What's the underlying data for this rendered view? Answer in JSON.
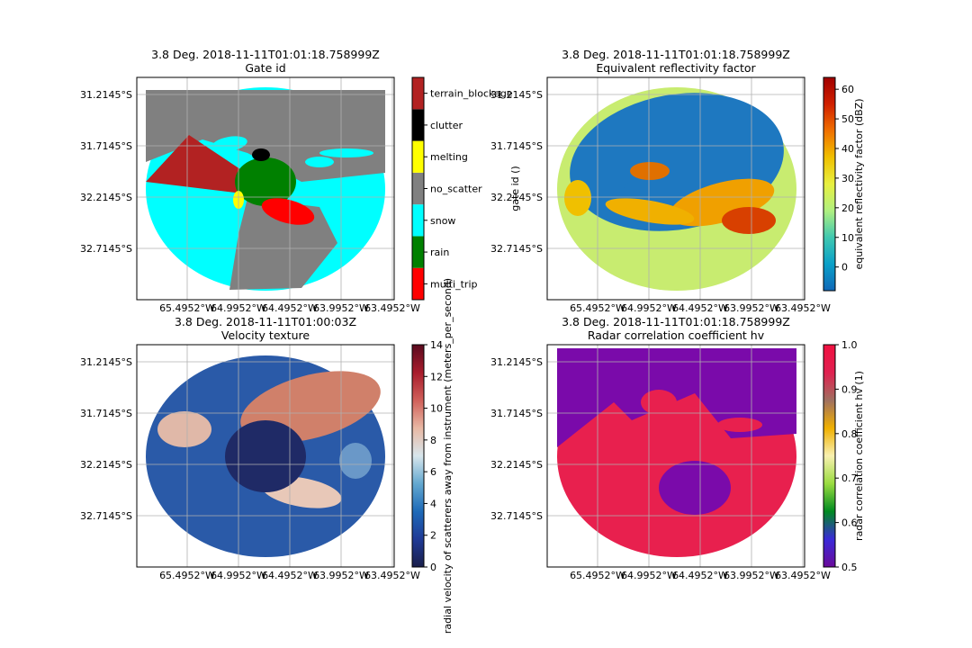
{
  "colors": {
    "gate_id": {
      "multi_trip": "#ff0000",
      "rain": "#008000",
      "snow": "#00ffff",
      "no_scatter": "#808080",
      "melting": "#ffff00",
      "clutter": "#000000",
      "terrain_blockage": "#b22222"
    },
    "plot_edge": "#000000",
    "grid": "#b0b0b0",
    "panel_bg": "#ffffff"
  },
  "chart_data": [
    {
      "type": "heatmap",
      "title": "3.8 Deg. 2018-11-11T01:01:18.758999Z",
      "subtitle": "Gate id",
      "x_tick_labels": [
        "65.4952°W",
        "64.9952°W",
        "64.4952°W",
        "63.9952°W",
        "63.4952°W"
      ],
      "y_tick_labels": [
        "31.2145°S",
        "31.7145°S",
        "32.2145°S",
        "32.7145°S"
      ],
      "colorbar": {
        "kind": "categorical",
        "label": "gate id ()",
        "categories": [
          "multi_trip",
          "rain",
          "snow",
          "no_scatter",
          "melting",
          "clutter",
          "terrain_blockage"
        ]
      },
      "grid": true
    },
    {
      "type": "heatmap",
      "title": "3.8 Deg. 2018-11-11T01:01:18.758999Z",
      "subtitle": "Equivalent reflectivity factor",
      "x_tick_labels": [
        "65.4952°W",
        "64.9952°W",
        "64.4952°W",
        "63.9952°W",
        "63.4952°W"
      ],
      "y_tick_labels": [
        "31.2145°S",
        "31.7145°S",
        "32.2145°S",
        "32.7145°S"
      ],
      "colorbar": {
        "kind": "continuous",
        "label": "equivalent reflectivity factor (dBZ)",
        "range": [
          -8,
          64
        ],
        "ticks": [
          "0",
          "10",
          "20",
          "30",
          "40",
          "50",
          "60"
        ],
        "tick_values": [
          0,
          10,
          20,
          30,
          40,
          50,
          60
        ],
        "stops": [
          "#1068b8",
          "#0aa0c8",
          "#40c8b0",
          "#b0f080",
          "#e8f040",
          "#f0c000",
          "#f07000",
          "#d02000",
          "#a00000"
        ]
      },
      "grid": true
    },
    {
      "type": "heatmap",
      "title": "3.8 Deg. 2018-11-11T01:00:03Z",
      "subtitle": "Velocity texture",
      "x_tick_labels": [
        "65.4952°W",
        "64.9952°W",
        "64.4952°W",
        "63.9952°W",
        "63.4952°W"
      ],
      "y_tick_labels": [
        "31.2145°S",
        "31.7145°S",
        "32.2145°S",
        "32.7145°S"
      ],
      "colorbar": {
        "kind": "continuous",
        "label": "radial velocity of scatterers away from instrument (meters_per_second)",
        "range": [
          0,
          14
        ],
        "ticks": [
          "0",
          "2",
          "4",
          "6",
          "8",
          "10",
          "12",
          "14"
        ],
        "tick_values": [
          0,
          2,
          4,
          6,
          8,
          10,
          12,
          14
        ],
        "stops": [
          "#1a1f4a",
          "#1f3a96",
          "#1e6ab8",
          "#64a8d0",
          "#d8e6ec",
          "#e8b8a4",
          "#d0605a",
          "#a81c2c",
          "#5a0a1e"
        ]
      },
      "grid": true
    },
    {
      "type": "heatmap",
      "title": "3.8 Deg. 2018-11-11T01:01:18.758999Z",
      "subtitle": "Radar correlation coefficient hv",
      "x_tick_labels": [
        "65.4952°W",
        "64.9952°W",
        "64.4952°W",
        "63.9952°W",
        "63.4952°W"
      ],
      "y_tick_labels": [
        "31.2145°S",
        "31.7145°S",
        "32.2145°S",
        "32.7145°S"
      ],
      "colorbar": {
        "kind": "continuous",
        "label": "radar correlation coefficient hv (1)",
        "range": [
          0.5,
          1.0
        ],
        "ticks": [
          "0.5",
          "0.6",
          "0.7",
          "0.8",
          "0.9",
          "1.0"
        ],
        "tick_values": [
          0.5,
          0.6,
          0.7,
          0.8,
          0.9,
          1.0
        ],
        "stops": [
          "#6a0a9a",
          "#3a2ad8",
          "#008a20",
          "#9adc40",
          "#f8f0b0",
          "#f0b000",
          "#a07060",
          "#e02050",
          "#f01040"
        ]
      },
      "grid": true
    }
  ]
}
